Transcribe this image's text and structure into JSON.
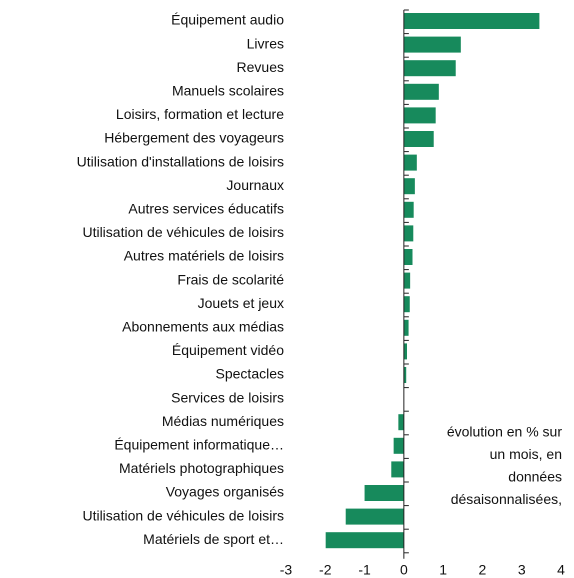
{
  "chart_data": {
    "type": "bar",
    "orientation": "horizontal",
    "categories": [
      "Équipement audio",
      "Livres",
      "Revues",
      "Manuels scolaires",
      "Loisirs, formation et lecture",
      "Hébergement des voyageurs",
      "Utilisation d'installations de loisirs",
      "Journaux",
      "Autres services éducatifs",
      "Utilisation de véhicules de loisirs",
      "Autres matériels de loisirs",
      "Frais de scolarité",
      "Jouets et jeux",
      "Abonnements aux médias",
      "Équipement vidéo",
      "Spectacles",
      "Services de loisirs",
      "Médias numériques",
      "Équipement informatique…",
      "Matériels photographiques",
      "Voyages organisés",
      "Utilisation de véhicules de loisirs",
      "Matériels de sport et…"
    ],
    "values": [
      3.45,
      1.45,
      1.32,
      0.89,
      0.81,
      0.76,
      0.33,
      0.28,
      0.25,
      0.24,
      0.22,
      0.16,
      0.15,
      0.12,
      0.08,
      0.06,
      0,
      -0.14,
      -0.26,
      -0.32,
      -1.0,
      -1.48,
      -1.99
    ],
    "color": "#178a5c",
    "xlim": [
      -3,
      4
    ],
    "xticks": [
      -3,
      -2,
      -1,
      0,
      1,
      2,
      3,
      4
    ],
    "annotation": [
      "évolution en % sur",
      "un mois, en",
      "données",
      "désaisonnalisées,"
    ]
  }
}
